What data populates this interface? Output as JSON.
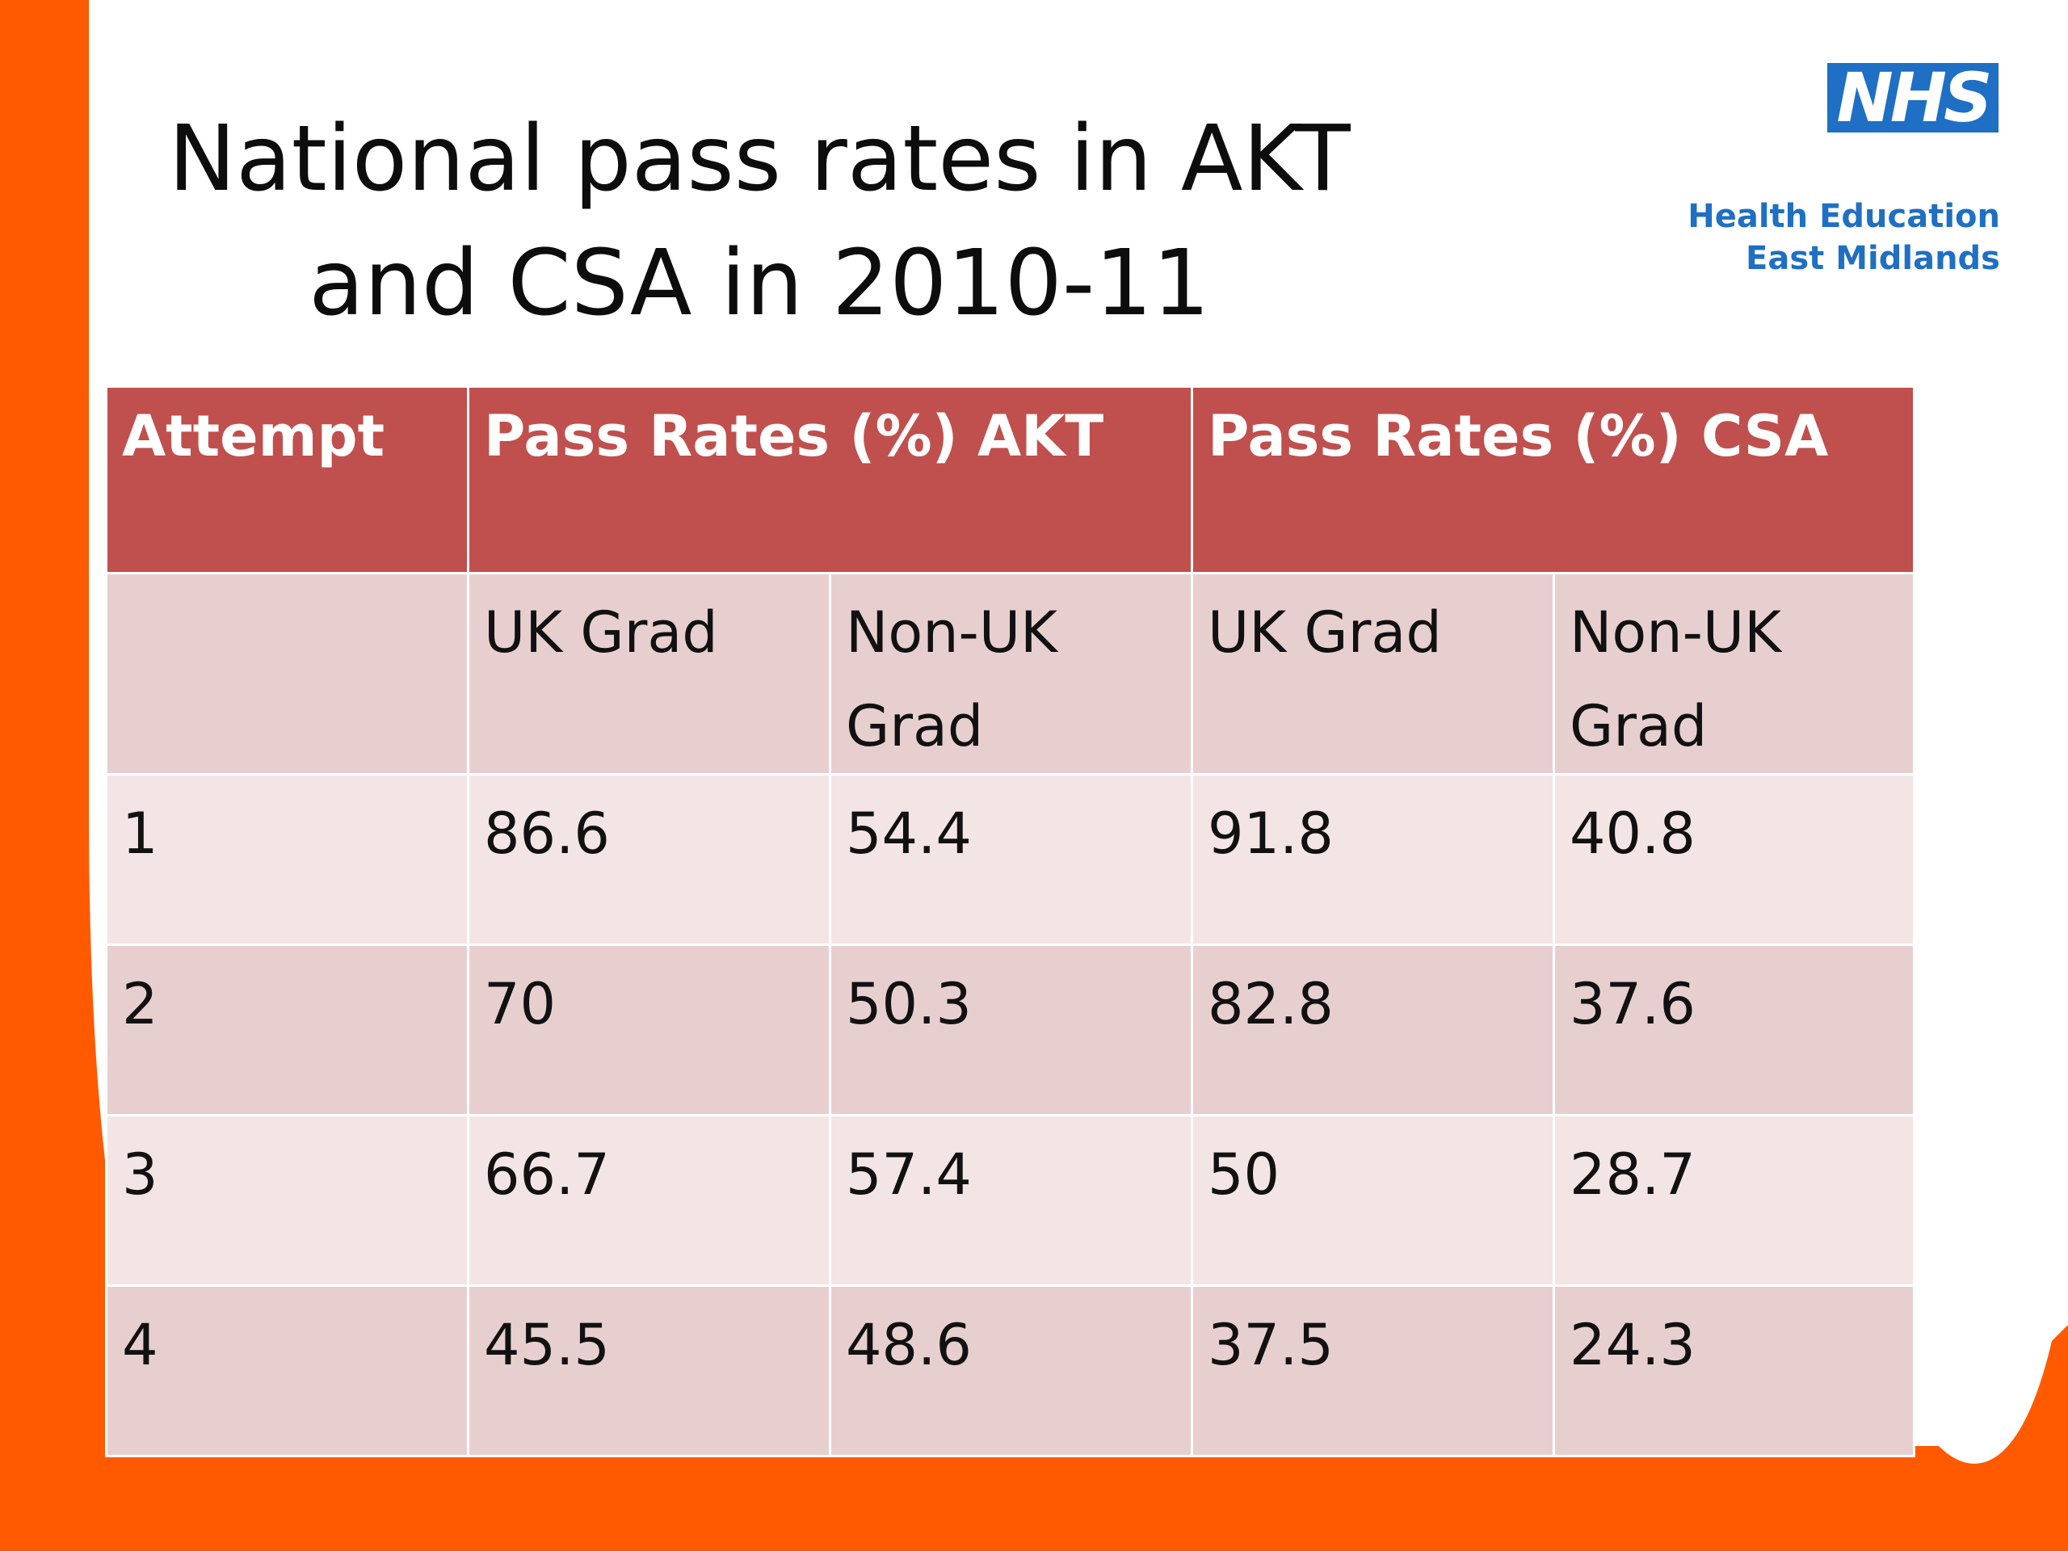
{
  "slide": {
    "title_line1": "National pass rates in AKT",
    "title_line2": "and CSA in 2010-11"
  },
  "logo": {
    "wordmark": "NHS",
    "org_line1": "Health Education",
    "org_line2": "East Midlands",
    "brand_color": "#1f6fc4"
  },
  "colors": {
    "accent_orange": "#ff5a00",
    "header_red": "#c0504d",
    "row_dark": "#e8cfcf",
    "row_light": "#f3e5e5"
  },
  "table": {
    "headers": [
      "Attempt",
      "Pass Rates (%) AKT",
      "Pass Rates (%) CSA"
    ],
    "subheaders": [
      "",
      "UK Grad",
      "Non-UK Grad",
      "UK Grad",
      "Non-UK Grad"
    ],
    "rows": [
      [
        "1",
        "86.6",
        "54.4",
        "91.8",
        "40.8"
      ],
      [
        "2",
        "70",
        "50.3",
        "82.8",
        "37.6"
      ],
      [
        "3",
        "66.7",
        "57.4",
        "50",
        "28.7"
      ],
      [
        "4",
        "45.5",
        "48.6",
        "37.5",
        "24.3"
      ]
    ]
  }
}
